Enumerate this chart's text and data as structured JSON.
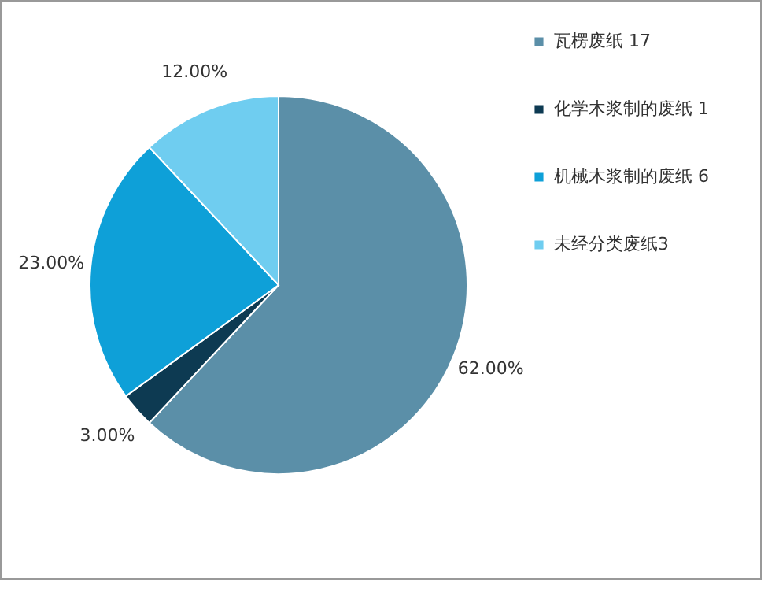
{
  "chart_data": {
    "type": "pie",
    "categories": [
      "瓦楞废纸 17",
      "化学木浆制的废纸 1",
      "机械木浆制的废纸 6",
      "未经分类废纸3"
    ],
    "values": [
      62,
      3,
      23,
      12
    ],
    "colors": [
      "#5b8fa8",
      "#0d3a52",
      "#0ea0d8",
      "#6fcdf0"
    ],
    "value_labels": [
      "62.00%",
      "3.00%",
      "23.00%",
      "12.00%"
    ],
    "legend": "right"
  }
}
